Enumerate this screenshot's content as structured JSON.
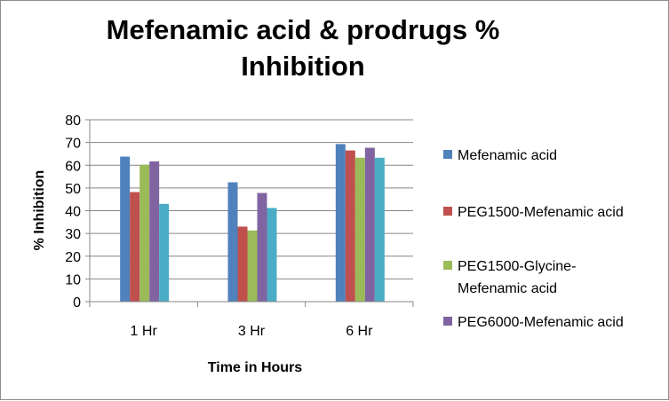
{
  "chart_data": {
    "type": "bar",
    "title_lines": [
      "Mefenamic acid & prodrugs %",
      "Inhibition"
    ],
    "xlabel": "Time in Hours",
    "ylabel": "% Inhibition",
    "categories": [
      "1 Hr",
      "3 Hr",
      "6 Hr"
    ],
    "ylim": [
      0,
      80
    ],
    "yticks": [
      "0",
      "10",
      "20",
      "30",
      "40",
      "50",
      "60",
      "70",
      "80"
    ],
    "grid": "horizontal",
    "legend_position": "right",
    "series": [
      {
        "name": "Mefenamic acid",
        "legend_lines": [
          "Mefenamic acid"
        ],
        "color": "#4f81bd",
        "values": [
          63.8,
          52.5,
          69.3
        ]
      },
      {
        "name": "PEG1500-Mefenamic acid",
        "legend_lines": [
          "PEG1500-Mefenamic acid"
        ],
        "color": "#c0504d",
        "values": [
          48.2,
          33.0,
          66.5
        ]
      },
      {
        "name": "PEG1500-Glycine-Mefenamic acid",
        "legend_lines": [
          "PEG1500-Glycine-",
          "Mefenamic acid"
        ],
        "color": "#9bbb59",
        "values": [
          60.2,
          31.3,
          63.3
        ]
      },
      {
        "name": "PEG6000-Mefenamic acid",
        "legend_lines": [
          "PEG6000-Mefenamic acid"
        ],
        "color": "#8064a2",
        "values": [
          61.7,
          47.8,
          67.7
        ]
      },
      {
        "name": "",
        "legend_lines": [],
        "color": "#4bacc6",
        "values": [
          43.0,
          41.2,
          63.3
        ]
      }
    ]
  }
}
